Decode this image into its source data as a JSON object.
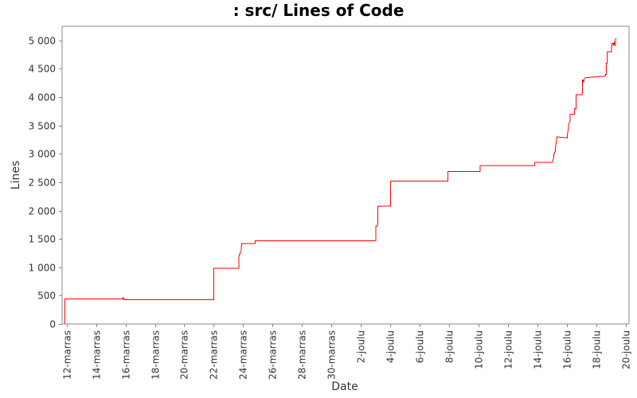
{
  "chart_data": {
    "type": "line",
    "title": ": src/ Lines of Code",
    "xlabel": "Date",
    "ylabel": "Lines",
    "ylim": [
      0,
      5250
    ],
    "xlim": [
      -0.3,
      38.2
    ],
    "grid": false,
    "legend": "none",
    "line_color": "#ff0000",
    "x_tick_labels": [
      "12-marras",
      "14-marras",
      "16-marras",
      "18-marras",
      "20-marras",
      "22-marras",
      "24-marras",
      "26-marras",
      "28-marras",
      "30-marras",
      "2-joulu",
      "4-joulu",
      "6-joulu",
      "8-joulu",
      "10-joulu",
      "12-joulu",
      "14-joulu",
      "16-joulu",
      "18-joulu",
      "20-joulu"
    ],
    "y_ticks": [
      {
        "value": 0,
        "label": "0"
      },
      {
        "value": 500,
        "label": "500"
      },
      {
        "value": 1000,
        "label": "1 000"
      },
      {
        "value": 1500,
        "label": "1 500"
      },
      {
        "value": 2000,
        "label": "2 000"
      },
      {
        "value": 2500,
        "label": "2 500"
      },
      {
        "value": 3000,
        "label": "3 000"
      },
      {
        "value": 3500,
        "label": "3 500"
      },
      {
        "value": 4000,
        "label": "4 000"
      },
      {
        "value": 4500,
        "label": "4 500"
      },
      {
        "value": 5000,
        "label": "5 000"
      }
    ],
    "series": [
      {
        "x": [
          -0.1,
          -0.1,
          3.85,
          3.85,
          3.9,
          3.9,
          10.0,
          10.0,
          11.7,
          11.7,
          11.75,
          11.8,
          11.85,
          11.9,
          12.0,
          12.8,
          12.8,
          21.0,
          21.0,
          21.1,
          21.1,
          21.15,
          21.15,
          21.2,
          21.2,
          22.0,
          22.0,
          25.9,
          25.9,
          28.0,
          28.0,
          28.1,
          28.1,
          31.8,
          31.8,
          31.85,
          31.9,
          31.95,
          32.0,
          32.05,
          32.1,
          32.15,
          32.2,
          32.3,
          32.3,
          33.0,
          33.0,
          33.05,
          33.1,
          33.1,
          33.2,
          33.2,
          33.25,
          33.3,
          33.3,
          34.0,
          34.0,
          34.1,
          34.1,
          34.2,
          34.2,
          34.3,
          34.3,
          34.5,
          34.5,
          34.6,
          34.6,
          35.0,
          35.0,
          35.05,
          35.05,
          35.1,
          35.1,
          35.2,
          35.2,
          36.5,
          36.5,
          36.55,
          36.55,
          36.6,
          36.6,
          36.65,
          36.65,
          36.7,
          36.7,
          36.75,
          36.75,
          37.0,
          37.0,
          37.05,
          37.05,
          37.1,
          37.15,
          37.2,
          37.25,
          37.3
        ],
        "y": [
          0,
          440,
          440,
          460,
          460,
          430,
          430,
          985,
          985,
          1180,
          1220,
          1260,
          1280,
          1420,
          1420,
          1420,
          1470,
          1470,
          1730,
          1730,
          1760,
          1760,
          2070,
          2070,
          2080,
          2080,
          2520,
          2520,
          2690,
          2690,
          2690,
          2690,
          2790,
          2790,
          2850,
          2850,
          2850,
          2850,
          2850,
          2850,
          2850,
          2850,
          2850,
          2850,
          2850,
          2850,
          2850,
          2900,
          2950,
          3000,
          3050,
          3100,
          3200,
          3280,
          3300,
          3280,
          3320,
          3470,
          3520,
          3580,
          3700,
          3700,
          3700,
          3700,
          3800,
          3800,
          4040,
          4040,
          4080,
          4080,
          4300,
          4300,
          4260,
          4340,
          4340,
          4370,
          4370,
          4380,
          4380,
          4380,
          4400,
          4400,
          4600,
          4600,
          4780,
          4800,
          4800,
          4800,
          4900,
          4900,
          4950,
          4950,
          4920,
          4980,
          4900,
          5040
        ]
      }
    ]
  }
}
